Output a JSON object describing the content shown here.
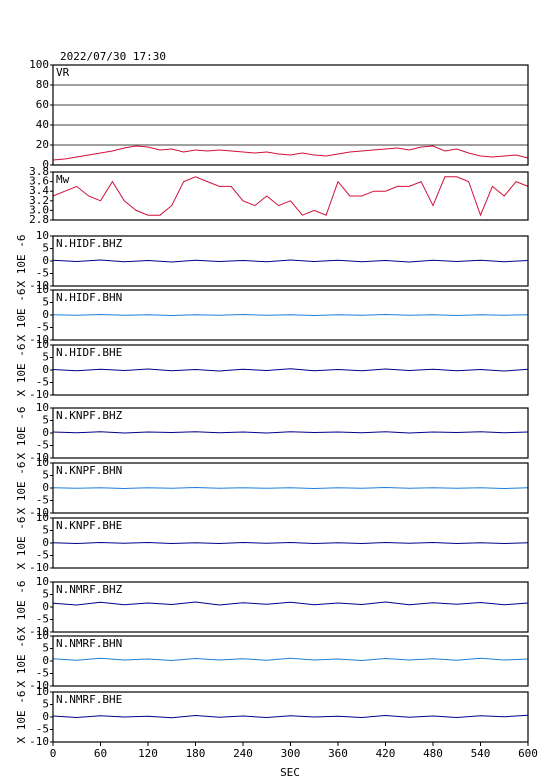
{
  "chart_data": [
    {
      "type": "line",
      "title": "2022/07/30 17:30",
      "label": "VR",
      "ylim": [
        0,
        100
      ],
      "yticks": [
        0,
        20,
        40,
        60,
        80,
        100
      ],
      "grid": true,
      "xlim": [
        0,
        600
      ],
      "x": [
        0,
        15,
        30,
        45,
        60,
        75,
        90,
        105,
        120,
        135,
        150,
        165,
        180,
        195,
        210,
        225,
        240,
        255,
        270,
        285,
        300,
        315,
        330,
        345,
        360,
        375,
        390,
        405,
        420,
        435,
        450,
        465,
        480,
        495,
        510,
        525,
        540,
        555,
        570,
        585,
        600
      ],
      "series": [
        {
          "color": "#d0103a",
          "values": [
            5,
            6,
            8,
            10,
            12,
            14,
            17,
            19,
            18,
            15,
            16,
            13,
            15,
            14,
            15,
            14,
            13,
            12,
            13,
            11,
            10,
            12,
            10,
            9,
            11,
            13,
            14,
            15,
            16,
            17,
            15,
            18,
            19,
            14,
            16,
            12,
            9,
            8,
            9,
            10,
            7
          ]
        }
      ]
    },
    {
      "type": "line",
      "label": "Mw",
      "ylim": [
        2.8,
        3.8
      ],
      "yticks": [
        2.8,
        {
          "value": 3,
          "label": "3.0"
        },
        3.2,
        3.4,
        3.6,
        3.8
      ],
      "xlim": [
        0,
        600
      ],
      "x": [
        0,
        15,
        30,
        45,
        60,
        75,
        90,
        105,
        120,
        135,
        150,
        165,
        180,
        195,
        210,
        225,
        240,
        255,
        270,
        285,
        300,
        315,
        330,
        345,
        360,
        375,
        390,
        405,
        420,
        435,
        450,
        465,
        480,
        495,
        510,
        525,
        540,
        555,
        570,
        585,
        600
      ],
      "series": [
        {
          "color": "#d0103a",
          "values": [
            3.3,
            3.4,
            3.5,
            3.3,
            3.2,
            3.6,
            3.2,
            3.0,
            2.9,
            2.9,
            3.1,
            3.6,
            3.7,
            3.6,
            3.5,
            3.5,
            3.2,
            3.1,
            3.3,
            3.1,
            3.2,
            2.9,
            3.0,
            2.9,
            3.6,
            3.3,
            3.3,
            3.4,
            3.4,
            3.5,
            3.5,
            3.6,
            3.1,
            3.7,
            3.7,
            3.6,
            2.9,
            3.5,
            3.3,
            3.6,
            3.5
          ]
        }
      ]
    },
    {
      "type": "line",
      "label": "N.HIDF.BHZ",
      "ylabel": "X 10E -6",
      "ylim": [
        -10,
        10
      ],
      "yticks": [
        -10,
        -5,
        0,
        5,
        10
      ],
      "xlim": [
        0,
        600
      ],
      "x": [
        0,
        30,
        60,
        90,
        120,
        150,
        180,
        210,
        240,
        270,
        300,
        330,
        360,
        390,
        420,
        450,
        480,
        510,
        540,
        570,
        600
      ],
      "series": [
        {
          "color": "#00008b",
          "values": [
            0.3,
            -0.2,
            0.4,
            -0.3,
            0.2,
            -0.4,
            0.3,
            -0.2,
            0.2,
            -0.3,
            0.4,
            -0.2,
            0.3,
            -0.3,
            0.2,
            -0.4,
            0.3,
            -0.2,
            0.3,
            -0.3,
            0.2
          ]
        }
      ]
    },
    {
      "type": "line",
      "label": "N.HIDF.BHN",
      "ylabel": "X 10E -6",
      "ylim": [
        -10,
        10
      ],
      "yticks": [
        -10,
        -5,
        0,
        5,
        10
      ],
      "xlim": [
        0,
        600
      ],
      "x": [
        0,
        30,
        60,
        90,
        120,
        150,
        180,
        210,
        240,
        270,
        300,
        330,
        360,
        390,
        420,
        450,
        480,
        510,
        540,
        570,
        600
      ],
      "series": [
        {
          "color": "#1e7fd8",
          "values": [
            0.1,
            -0.1,
            0.2,
            -0.1,
            0.1,
            -0.2,
            0.1,
            -0.1,
            0.2,
            -0.1,
            0.1,
            -0.2,
            0.1,
            -0.1,
            0.2,
            -0.1,
            0.1,
            -0.2,
            0.1,
            -0.1,
            0.1
          ]
        }
      ]
    },
    {
      "type": "line",
      "label": "N.HIDF.BHE",
      "ylabel": "X 10E -6",
      "ylim": [
        -10,
        10
      ],
      "yticks": [
        -10,
        -5,
        0,
        5,
        10
      ],
      "xlim": [
        0,
        600
      ],
      "x": [
        0,
        30,
        60,
        90,
        120,
        150,
        180,
        210,
        240,
        270,
        300,
        330,
        360,
        390,
        420,
        450,
        480,
        510,
        540,
        570,
        600
      ],
      "series": [
        {
          "color": "#00008b",
          "values": [
            0.2,
            -0.3,
            0.3,
            -0.2,
            0.4,
            -0.3,
            0.2,
            -0.4,
            0.3,
            -0.2,
            0.5,
            -0.3,
            0.2,
            -0.3,
            0.4,
            -0.2,
            0.3,
            -0.3,
            0.2,
            -0.4,
            0.3
          ]
        }
      ]
    },
    {
      "type": "line",
      "label": "N.KNPF.BHZ",
      "ylabel": "X 10E -6",
      "ylim": [
        -10,
        10
      ],
      "yticks": [
        -10,
        -5,
        0,
        5,
        10
      ],
      "xlim": [
        0,
        600
      ],
      "x": [
        0,
        30,
        60,
        90,
        120,
        150,
        180,
        210,
        240,
        270,
        300,
        330,
        360,
        390,
        420,
        450,
        480,
        510,
        540,
        570,
        600
      ],
      "series": [
        {
          "color": "#00008b",
          "values": [
            0.4,
            0.1,
            0.5,
            0.0,
            0.4,
            0.2,
            0.5,
            0.1,
            0.4,
            0.0,
            0.5,
            0.2,
            0.4,
            0.1,
            0.5,
            0.0,
            0.4,
            0.2,
            0.5,
            0.1,
            0.4
          ]
        }
      ]
    },
    {
      "type": "line",
      "label": "N.KNPF.BHN",
      "ylabel": "X 10E -6",
      "ylim": [
        -10,
        10
      ],
      "yticks": [
        -10,
        -5,
        0,
        5,
        10
      ],
      "xlim": [
        0,
        600
      ],
      "x": [
        0,
        30,
        60,
        90,
        120,
        150,
        180,
        210,
        240,
        270,
        300,
        330,
        360,
        390,
        420,
        450,
        480,
        510,
        540,
        570,
        600
      ],
      "series": [
        {
          "color": "#1e7fd8",
          "values": [
            0.1,
            -0.1,
            0.1,
            -0.2,
            0.1,
            -0.1,
            0.2,
            -0.1,
            0.1,
            -0.1,
            0.1,
            -0.2,
            0.1,
            -0.1,
            0.2,
            -0.1,
            0.1,
            -0.1,
            0.1,
            -0.2,
            0.1
          ]
        }
      ]
    },
    {
      "type": "line",
      "label": "N.KNPF.BHE",
      "ylabel": "X 10E -6",
      "ylim": [
        -10,
        10
      ],
      "yticks": [
        -10,
        -5,
        0,
        5,
        10
      ],
      "xlim": [
        0,
        600
      ],
      "x": [
        0,
        30,
        60,
        90,
        120,
        150,
        180,
        210,
        240,
        270,
        300,
        330,
        360,
        390,
        420,
        450,
        480,
        510,
        540,
        570,
        600
      ],
      "series": [
        {
          "color": "#00008b",
          "values": [
            0.1,
            -0.2,
            0.2,
            -0.1,
            0.2,
            -0.2,
            0.1,
            -0.2,
            0.2,
            -0.1,
            0.2,
            -0.2,
            0.1,
            -0.2,
            0.2,
            -0.1,
            0.2,
            -0.2,
            0.1,
            -0.2,
            0.1
          ]
        }
      ]
    },
    {
      "type": "line",
      "label": "N.NMRF.BHZ",
      "ylabel": "X 10E -6",
      "ylim": [
        -10,
        10
      ],
      "yticks": [
        -10,
        -5,
        0,
        5,
        10
      ],
      "xlim": [
        0,
        600
      ],
      "x": [
        0,
        30,
        60,
        90,
        120,
        150,
        180,
        210,
        240,
        270,
        300,
        330,
        360,
        390,
        420,
        450,
        480,
        510,
        540,
        570,
        600
      ],
      "series": [
        {
          "color": "#00008b",
          "values": [
            1.5,
            0.8,
            1.9,
            0.9,
            1.6,
            1.0,
            2.0,
            0.8,
            1.7,
            1.1,
            1.9,
            0.9,
            1.6,
            1.0,
            2.0,
            0.9,
            1.7,
            1.1,
            1.8,
            0.9,
            1.6
          ]
        }
      ]
    },
    {
      "type": "line",
      "label": "N.NMRF.BHN",
      "ylabel": "X 10E -6",
      "ylim": [
        -10,
        10
      ],
      "yticks": [
        -10,
        -5,
        0,
        5,
        10
      ],
      "xlim": [
        0,
        600
      ],
      "x": [
        0,
        30,
        60,
        90,
        120,
        150,
        180,
        210,
        240,
        270,
        300,
        330,
        360,
        390,
        420,
        450,
        480,
        510,
        540,
        570,
        600
      ],
      "series": [
        {
          "color": "#1e7fd8",
          "values": [
            0.9,
            0.3,
            1.1,
            0.4,
            0.8,
            0.2,
            1.0,
            0.4,
            0.9,
            0.3,
            1.1,
            0.4,
            0.8,
            0.2,
            1.0,
            0.4,
            0.9,
            0.3,
            1.1,
            0.4,
            0.8
          ]
        }
      ]
    },
    {
      "type": "line",
      "label": "N.NMRF.BHE",
      "ylabel": "X 10E -6",
      "ylim": [
        -10,
        10
      ],
      "yticks": [
        -10,
        -5,
        0,
        5,
        10
      ],
      "xlim": [
        0,
        600
      ],
      "xticks": [
        0,
        60,
        120,
        180,
        240,
        300,
        360,
        420,
        480,
        540,
        600
      ],
      "xlabel": "SEC",
      "x": [
        0,
        30,
        60,
        90,
        120,
        150,
        180,
        210,
        240,
        270,
        300,
        330,
        360,
        390,
        420,
        450,
        480,
        510,
        540,
        570,
        600
      ],
      "series": [
        {
          "color": "#00008b",
          "values": [
            0.4,
            -0.2,
            0.5,
            0.0,
            0.3,
            -0.3,
            0.6,
            -0.1,
            0.4,
            -0.2,
            0.5,
            0.0,
            0.3,
            -0.2,
            0.6,
            -0.1,
            0.4,
            -0.2,
            0.5,
            0.1,
            0.7
          ]
        }
      ]
    }
  ]
}
